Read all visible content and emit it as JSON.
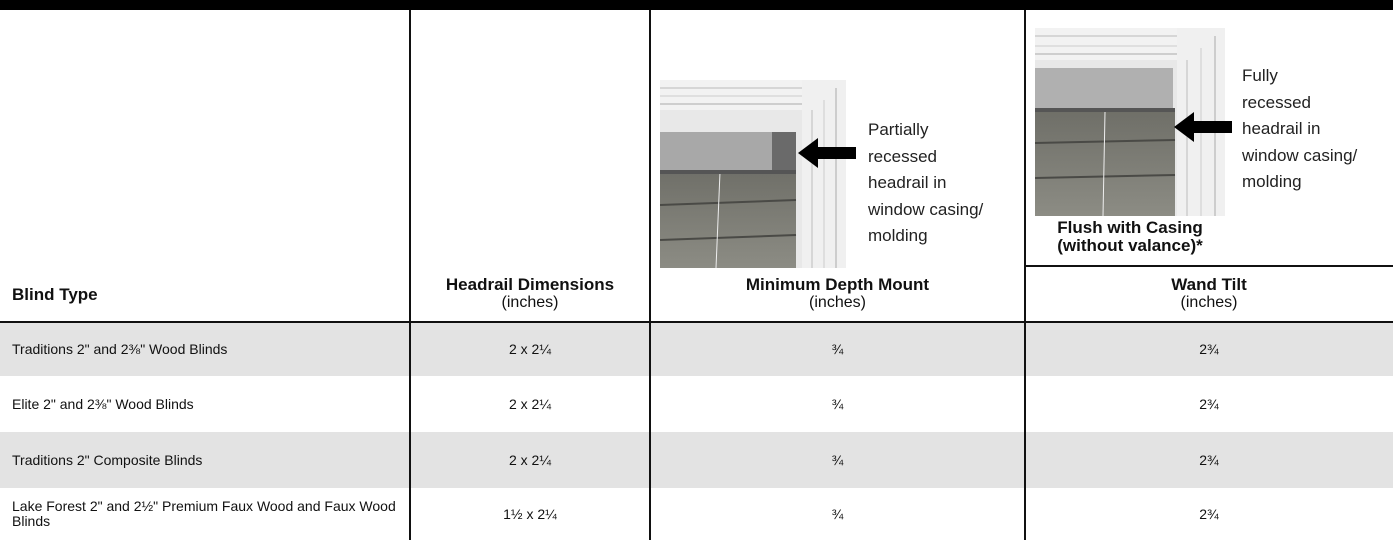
{
  "header": {
    "callouts": [
      {
        "lines": [
          "Partially",
          "recessed",
          "headrail in",
          "window casing/",
          "molding"
        ]
      },
      {
        "lines": [
          "Fully",
          "recessed",
          "headrail in",
          "window casing/",
          "molding"
        ]
      }
    ],
    "flush_label": {
      "title": "Flush with Casing",
      "subtitle": "(without valance)*"
    }
  },
  "table": {
    "columns": [
      {
        "title": "Blind Type"
      },
      {
        "title": "Headrail Dimensions",
        "unit": "(inches)"
      },
      {
        "title": "Minimum Depth Mount",
        "unit": "(inches)"
      },
      {
        "title": "Wand Tilt",
        "unit": "(inches)"
      }
    ],
    "rows": [
      [
        "Traditions 2\" and 2⅜\" Wood Blinds",
        "2 x 2¼",
        "¾",
        "2¾"
      ],
      [
        "Elite 2\" and 2⅜\" Wood Blinds",
        "2 x 2¼",
        "¾",
        "2¾"
      ],
      [
        "Traditions 2\" Composite Blinds",
        "2 x 2¼",
        "¾",
        "2¾"
      ],
      [
        "Lake Forest 2\" and 2½\" Premium Faux Wood and Faux Wood Blinds",
        "1½ x 2¼",
        "¾",
        "2¾"
      ]
    ]
  }
}
